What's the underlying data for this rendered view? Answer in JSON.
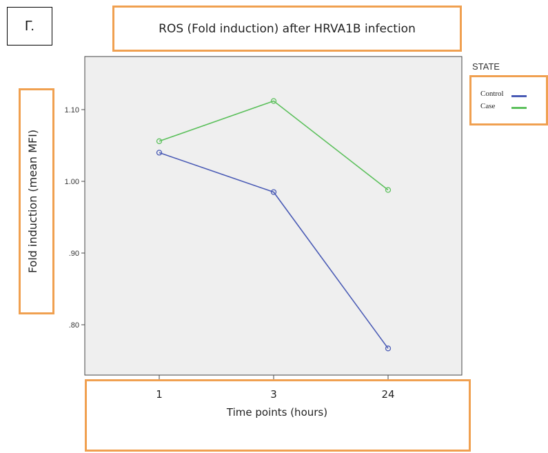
{
  "panel_label": "Г.",
  "chart_data": {
    "type": "line",
    "title": "ROS (Fold induction) after HRVA1B infection",
    "xlabel": "Time points (hours)",
    "ylabel": "Fold induction (mean MFI)",
    "categories": [
      "1",
      "3",
      "24"
    ],
    "yticks": [
      ".80",
      ".90",
      "1.00",
      "1.10"
    ],
    "ylim": [
      0.73,
      1.17
    ],
    "grid": false,
    "legend_title": "STATE",
    "legend_position": "right",
    "series": [
      {
        "name": "Control",
        "color": "#4a5bb5",
        "values": [
          1.04,
          0.985,
          0.767
        ]
      },
      {
        "name": "Case",
        "color": "#5cc05c",
        "values": [
          1.056,
          1.112,
          0.988
        ]
      }
    ]
  }
}
